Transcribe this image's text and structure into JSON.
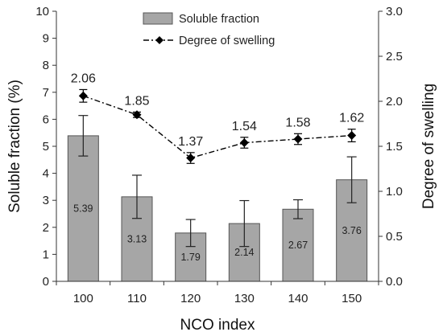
{
  "chart_data": {
    "type": "bar",
    "categories": [
      "100",
      "110",
      "120",
      "130",
      "140",
      "150"
    ],
    "xlabel": "NCO index",
    "ylabel": "Soluble fraction (%)",
    "y2label": "Degree of swelling",
    "ylim": [
      0,
      10
    ],
    "y2lim": [
      0,
      3.0
    ],
    "yticks": [
      "0",
      "1",
      "2",
      "3",
      "4",
      "5",
      "6",
      "7",
      "8",
      "9",
      "10"
    ],
    "y2ticks": [
      "0.0",
      "0.5",
      "1.0",
      "1.5",
      "2.0",
      "2.5",
      "3.0"
    ],
    "legend_position": "top-center",
    "grid": false,
    "series": [
      {
        "name": "Soluble fraction",
        "type": "bar",
        "axis": "left",
        "values": [
          5.39,
          3.13,
          1.79,
          2.14,
          2.67,
          3.76
        ],
        "labels": [
          "5.39",
          "3.13",
          "1.79",
          "2.14",
          "2.67",
          "3.76"
        ],
        "error": [
          0.75,
          0.8,
          0.5,
          0.85,
          0.35,
          0.85
        ],
        "color": "#a6a6a6",
        "edge_color": "#555555"
      },
      {
        "name": "Degree of swelling",
        "type": "line",
        "axis": "right",
        "style": "dash-dot",
        "marker": "diamond",
        "values": [
          2.06,
          1.85,
          1.37,
          1.54,
          1.58,
          1.62
        ],
        "labels": [
          "2.06",
          "1.85",
          "1.37",
          "1.54",
          "1.58",
          "1.62"
        ],
        "error": [
          0.07,
          0.03,
          0.06,
          0.06,
          0.06,
          0.07
        ],
        "color": "#000000"
      }
    ]
  }
}
